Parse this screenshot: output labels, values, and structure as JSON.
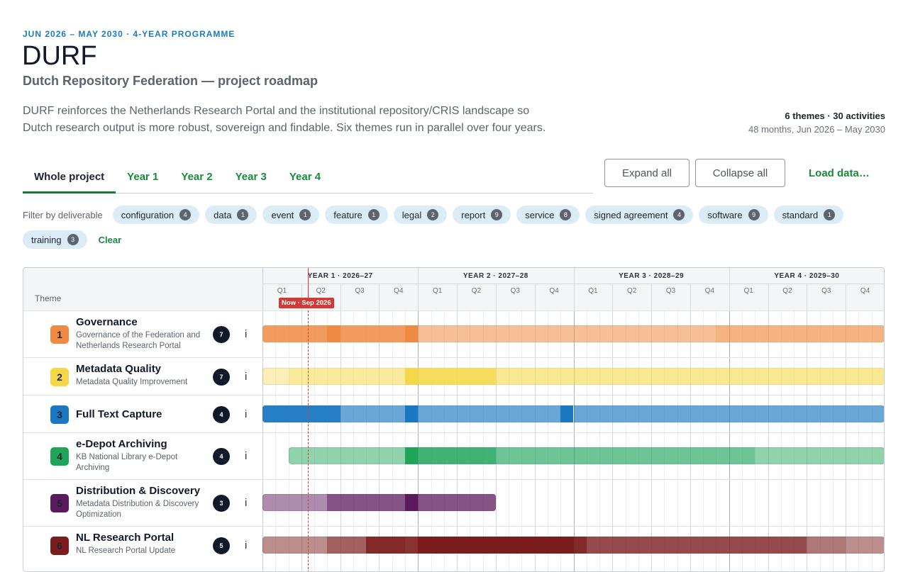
{
  "header": {
    "kicker": "JUN 2026 – MAY 2030 · 4-YEAR PROGRAMME",
    "title": "DURF",
    "subtitle": "Dutch Repository Federation — project roadmap",
    "description": "DURF reinforces the Netherlands Research Portal and the institutional repository/CRIS landscape so Dutch research output is more robust, sovereign and findable. Six themes run in parallel over four years.",
    "summary": "6 themes · 30 activities",
    "span": "48 months, Jun 2026 – May 2030"
  },
  "tabs": [
    "Whole project",
    "Year 1",
    "Year 2",
    "Year 3",
    "Year 4"
  ],
  "active_tab": 0,
  "buttons": [
    "Expand all",
    "Collapse all",
    "Load data…"
  ],
  "filter": {
    "label": "Filter by deliverable",
    "chips": [
      {
        "name": "configuration",
        "count": 4
      },
      {
        "name": "data",
        "count": 1
      },
      {
        "name": "event",
        "count": 1
      },
      {
        "name": "feature",
        "count": 1
      },
      {
        "name": "legal",
        "count": 2
      },
      {
        "name": "report",
        "count": 9
      },
      {
        "name": "service",
        "count": 8
      },
      {
        "name": "signed agreement",
        "count": 4
      },
      {
        "name": "software",
        "count": 9
      },
      {
        "name": "standard",
        "count": 1
      },
      {
        "name": "training",
        "count": 3
      }
    ],
    "clear": "Clear"
  },
  "gantt": {
    "theme_header": "Theme",
    "years": [
      "YEAR 1 · 2026–27",
      "YEAR 2 · 2027–28",
      "YEAR 3 · 2028–29",
      "YEAR 4 · 2029–30"
    ],
    "quarters": [
      "Q1",
      "Q2",
      "Q3",
      "Q4"
    ],
    "months": 48,
    "now": {
      "label": "Now · Sep 2026",
      "month": 3.5
    },
    "info": "i",
    "themes": [
      {
        "number": 1,
        "name": "Governance",
        "description": "Governance of the Federation and Netherlands Research Portal",
        "activities": 7,
        "color": "#f08a42",
        "spans": [
          [
            0,
            5,
            0.85
          ],
          [
            5,
            6,
            1
          ],
          [
            6,
            11,
            0.85
          ],
          [
            11,
            12,
            1
          ],
          [
            12,
            35,
            0.55
          ],
          [
            35,
            48,
            0.65
          ]
        ]
      },
      {
        "number": 2,
        "name": "Metadata Quality",
        "description": "Metadata Quality Improvement",
        "activities": 7,
        "color": "#f5d84a",
        "spans": [
          [
            0,
            2,
            0.4
          ],
          [
            2,
            11,
            0.55
          ],
          [
            11,
            12,
            1
          ],
          [
            12,
            18,
            0.9
          ],
          [
            18,
            48,
            0.6
          ]
        ]
      },
      {
        "number": 3,
        "name": "Full Text Capture",
        "description": null,
        "activities": 4,
        "color": "#1a78c2",
        "spans": [
          [
            0,
            6,
            0.95
          ],
          [
            6,
            11,
            0.65
          ],
          [
            11,
            12,
            1
          ],
          [
            12,
            23,
            0.65
          ],
          [
            23,
            24,
            1
          ],
          [
            24,
            48,
            0.65
          ]
        ]
      },
      {
        "number": 4,
        "name": "e-Depot Archiving",
        "description": "KB National Library e-Depot Archiving",
        "activities": 4,
        "color": "#1fa55a",
        "spans": [
          [
            2,
            11,
            0.5
          ],
          [
            11,
            12,
            1
          ],
          [
            12,
            18,
            0.85
          ],
          [
            18,
            38,
            0.65
          ],
          [
            38,
            48,
            0.5
          ]
        ]
      },
      {
        "number": 5,
        "name": "Distribution & Discovery",
        "description": "Metadata Distribution & Discovery Optimization",
        "activities": 3,
        "color": "#5c1a5e",
        "spans": [
          [
            0,
            5,
            0.5
          ],
          [
            5,
            11,
            0.75
          ],
          [
            11,
            12,
            1
          ],
          [
            12,
            18,
            0.75
          ]
        ]
      },
      {
        "number": 6,
        "name": "NL Research Portal",
        "description": "NL Research Portal Update",
        "activities": 5,
        "color": "#7c1d1d",
        "spans": [
          [
            0,
            5,
            0.5
          ],
          [
            5,
            8,
            0.7
          ],
          [
            8,
            11,
            0.95
          ],
          [
            11,
            12,
            0.9
          ],
          [
            12,
            24,
            1
          ],
          [
            24,
            25,
            0.95
          ],
          [
            25,
            42,
            0.8
          ],
          [
            42,
            45,
            0.6
          ],
          [
            45,
            48,
            0.5
          ]
        ]
      }
    ]
  }
}
